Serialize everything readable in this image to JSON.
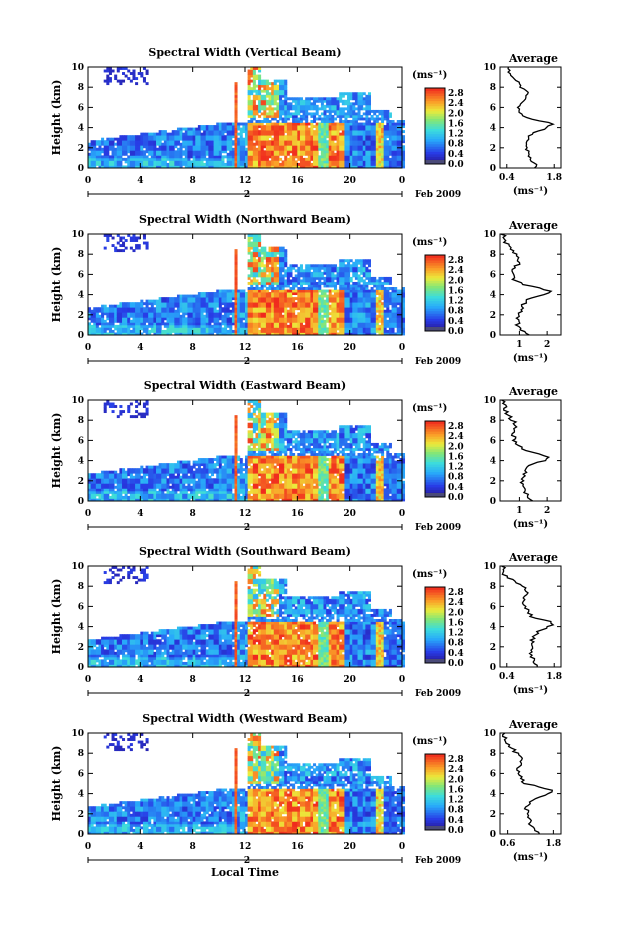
{
  "figure": {
    "x_axis_title": "Local Time",
    "date_label": "Feb 2009",
    "day_label": "2",
    "colorbar_unit": "(ms⁻¹)",
    "profile_title": "Average",
    "profile_xlabel": "(ms⁻¹)",
    "height_label": "Height (km)"
  },
  "chart_data": [
    {
      "type": "heatmap",
      "title": "Spectral Width (Vertical Beam)",
      "xlabel": "",
      "ylabel": "Height (km)",
      "xticks": [
        "0",
        "4",
        "8",
        "12",
        "16",
        "20",
        "0"
      ],
      "xlim": [
        0,
        24
      ],
      "yticks": [
        "0",
        "2",
        "4",
        "6",
        "8",
        "10"
      ],
      "ylim": [
        0,
        10
      ],
      "colorbar": {
        "ticks": [
          "0.0",
          "0.4",
          "0.8",
          "1.2",
          "1.6",
          "2.0",
          "2.4",
          "2.8"
        ],
        "range": [
          0,
          3.0
        ]
      },
      "profile": {
        "title": "Average",
        "xticks": [
          "0.4",
          "1.8"
        ],
        "xlim": [
          0.2,
          2.0
        ],
        "height": [
          0,
          0.5,
          1,
          1.5,
          2,
          2.5,
          3,
          3.5,
          4,
          4.3,
          4.6,
          5,
          5.5,
          6,
          6.5,
          7,
          7.5,
          8,
          8.5,
          9,
          9.5,
          10
        ],
        "value": [
          1.25,
          1.2,
          1.1,
          1.05,
          1.02,
          1.0,
          1.05,
          1.2,
          1.6,
          1.75,
          1.5,
          1.0,
          0.75,
          0.75,
          0.8,
          0.95,
          1.0,
          0.85,
          0.7,
          0.55,
          0.45,
          0.4
        ]
      }
    },
    {
      "type": "heatmap",
      "title": "Spectral Width (Northward Beam)",
      "xlabel": "",
      "ylabel": "Height (km)",
      "xticks": [
        "0",
        "4",
        "8",
        "12",
        "16",
        "20",
        "0"
      ],
      "xlim": [
        0,
        24
      ],
      "yticks": [
        "0",
        "2",
        "4",
        "6",
        "8",
        "10"
      ],
      "ylim": [
        0,
        10
      ],
      "colorbar": {
        "ticks": [
          "0.0",
          "0.4",
          "0.8",
          "1.2",
          "1.6",
          "2.0",
          "2.4",
          "2.8"
        ],
        "range": [
          0,
          3.0
        ]
      },
      "profile": {
        "title": "Average",
        "xticks": [
          "1",
          "2"
        ],
        "xlim": [
          0.3,
          2.5
        ],
        "height": [
          0,
          0.5,
          1,
          1.5,
          2,
          2.5,
          3,
          3.5,
          4,
          4.3,
          4.6,
          5,
          5.5,
          6,
          6.5,
          7,
          7.5,
          8,
          8.5,
          9,
          9.5,
          10
        ],
        "value": [
          1.4,
          1.05,
          0.95,
          0.95,
          1.0,
          1.05,
          1.1,
          1.3,
          1.9,
          2.2,
          1.8,
          1.1,
          0.8,
          0.75,
          0.8,
          0.95,
          1.0,
          0.85,
          0.7,
          0.55,
          0.45,
          0.4
        ]
      }
    },
    {
      "type": "heatmap",
      "title": "Spectral Width (Eastward Beam)",
      "xlabel": "",
      "ylabel": "Height (km)",
      "xticks": [
        "0",
        "4",
        "8",
        "12",
        "16",
        "20",
        "0"
      ],
      "xlim": [
        0,
        24
      ],
      "yticks": [
        "0",
        "2",
        "4",
        "6",
        "8",
        "10"
      ],
      "ylim": [
        0,
        10
      ],
      "colorbar": {
        "ticks": [
          "0.0",
          "0.4",
          "0.8",
          "1.2",
          "1.6",
          "2.0",
          "2.4",
          "2.8"
        ],
        "range": [
          0,
          3.0
        ]
      },
      "profile": {
        "title": "Average",
        "xticks": [
          "1",
          "2"
        ],
        "xlim": [
          0.3,
          2.5
        ],
        "height": [
          0,
          0.5,
          1,
          1.5,
          2,
          2.5,
          3,
          3.5,
          4,
          4.3,
          4.6,
          5,
          5.5,
          6,
          6.5,
          7,
          7.5,
          8,
          8.5,
          9,
          9.5,
          10
        ],
        "value": [
          1.55,
          1.3,
          1.15,
          1.1,
          1.1,
          1.15,
          1.2,
          1.4,
          1.9,
          2.1,
          1.8,
          1.2,
          0.95,
          0.85,
          0.8,
          0.85,
          0.9,
          0.75,
          0.6,
          0.5,
          0.45,
          0.4
        ]
      }
    },
    {
      "type": "heatmap",
      "title": "Spectral Width (Southward Beam)",
      "xlabel": "",
      "ylabel": "Height (km)",
      "xticks": [
        "0",
        "4",
        "8",
        "12",
        "16",
        "20",
        "0"
      ],
      "xlim": [
        0,
        24
      ],
      "yticks": [
        "0",
        "2",
        "4",
        "6",
        "8",
        "10"
      ],
      "ylim": [
        0,
        10
      ],
      "colorbar": {
        "ticks": [
          "0.0",
          "0.4",
          "0.8",
          "1.2",
          "1.6",
          "2.0",
          "2.4",
          "2.8"
        ],
        "range": [
          0,
          3.0
        ]
      },
      "profile": {
        "title": "Average",
        "xticks": [
          "0.4",
          "1.8"
        ],
        "xlim": [
          0.2,
          2.0
        ],
        "height": [
          0,
          0.5,
          1,
          1.5,
          2,
          2.5,
          3,
          3.5,
          4,
          4.3,
          4.6,
          5,
          5.5,
          6,
          6.5,
          7,
          7.5,
          8,
          8.5,
          9,
          9.5,
          10
        ],
        "value": [
          1.3,
          1.2,
          1.15,
          1.1,
          1.1,
          1.15,
          1.2,
          1.35,
          1.65,
          1.8,
          1.55,
          1.15,
          1.0,
          0.95,
          0.9,
          0.95,
          1.0,
          0.9,
          0.6,
          0.35,
          0.3,
          0.3
        ]
      }
    },
    {
      "type": "heatmap",
      "title": "Spectral Width (Westward Beam)",
      "xlabel": "Local Time",
      "ylabel": "Height (km)",
      "xticks": [
        "0",
        "4",
        "8",
        "12",
        "16",
        "20",
        "0"
      ],
      "xlim": [
        0,
        24
      ],
      "yticks": [
        "0",
        "2",
        "4",
        "6",
        "8",
        "10"
      ],
      "ylim": [
        0,
        10
      ],
      "colorbar": {
        "ticks": [
          "0.0",
          "0.4",
          "0.8",
          "1.2",
          "1.6",
          "2.0",
          "2.4",
          "2.8"
        ],
        "range": [
          0,
          3.0
        ]
      },
      "profile": {
        "title": "Average",
        "xticks": [
          "0.6",
          "1.8"
        ],
        "xlim": [
          0.4,
          2.0
        ],
        "height": [
          0,
          0.5,
          1,
          1.5,
          2,
          2.5,
          3,
          3.5,
          4,
          4.3,
          4.6,
          5,
          5.5,
          6,
          6.5,
          7,
          7.5,
          8,
          8.5,
          9,
          9.5,
          10
        ],
        "value": [
          1.45,
          1.3,
          1.2,
          1.15,
          1.1,
          1.1,
          1.15,
          1.3,
          1.65,
          1.8,
          1.5,
          1.05,
          0.95,
          0.9,
          0.85,
          0.95,
          1.0,
          0.85,
          0.7,
          0.6,
          0.55,
          0.5
        ]
      }
    }
  ]
}
